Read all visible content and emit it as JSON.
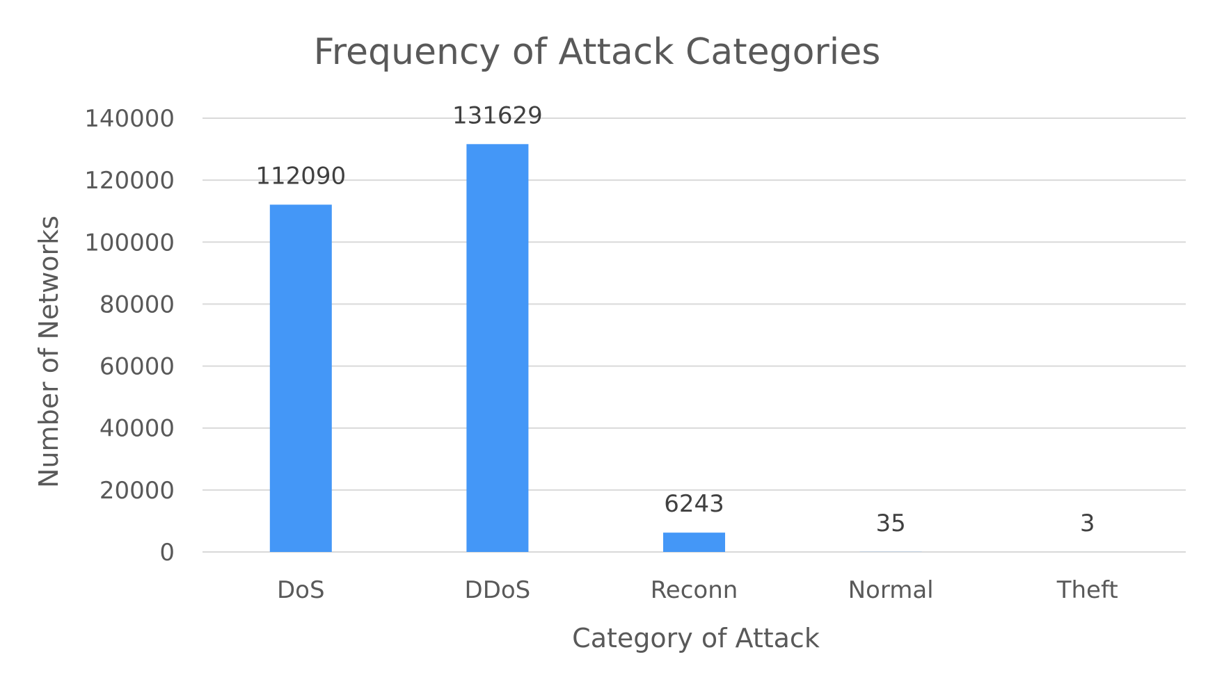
{
  "chart_data": {
    "type": "bar",
    "title": "Frequency of Attack Categories",
    "xlabel": "Category of Attack",
    "ylabel": "Number of Networks",
    "categories": [
      "DoS",
      "DDoS",
      "Reconn",
      "Normal",
      "Theft"
    ],
    "values": [
      112090,
      131629,
      6243,
      35,
      3
    ],
    "data_labels": [
      "112090",
      "131629",
      "6243",
      "35",
      "3"
    ],
    "ylim": [
      0,
      140000
    ],
    "yticks": [
      0,
      20000,
      40000,
      60000,
      80000,
      100000,
      120000,
      140000
    ],
    "ytick_labels": [
      "0",
      "20000",
      "40000",
      "60000",
      "80000",
      "100000",
      "120000",
      "140000"
    ],
    "grid": true,
    "legend": "none",
    "bar_color": "#4497f7"
  }
}
